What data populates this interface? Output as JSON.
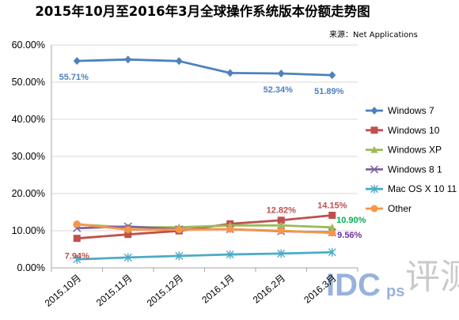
{
  "page": {
    "title": "2015年10月至2016年3月全球操作系统版本份额走势图",
    "source": "来源：Net Applications",
    "watermark_main": "IDC",
    "watermark_sub": "ps",
    "watermark_cn": "评测"
  },
  "chart_data": {
    "type": "line",
    "title": "2015年10月至2016年3月全球操作系统版本份额走势图",
    "xlabel": "",
    "ylabel": "",
    "categories": [
      "2015.10月",
      "2015.11月",
      "2015.12月",
      "2016.1月",
      "2016.2月",
      "2016.3月"
    ],
    "y_ticks": [
      "0.00%",
      "10.00%",
      "20.00%",
      "30.00%",
      "40.00%",
      "50.00%",
      "60.00%"
    ],
    "ylim": [
      0,
      60
    ],
    "grid": true,
    "legend_position": "right",
    "series": [
      {
        "name": "Windows 7",
        "color": "#4f81bd",
        "marker": "diamond",
        "values": [
          55.71,
          56.1,
          55.68,
          52.47,
          52.34,
          51.89
        ]
      },
      {
        "name": "Windows 10",
        "color": "#c0504d",
        "marker": "square",
        "values": [
          7.94,
          9.0,
          9.96,
          11.85,
          12.82,
          14.15
        ]
      },
      {
        "name": "Windows XP",
        "color": "#9bbb59",
        "marker": "triangle",
        "values": [
          11.68,
          10.93,
          10.93,
          11.42,
          11.42,
          10.9
        ]
      },
      {
        "name": "Windows 8 1",
        "color": "#8064a2",
        "marker": "x",
        "values": [
          10.68,
          11.15,
          10.4,
          10.4,
          9.86,
          9.56
        ]
      },
      {
        "name": "Mac OS X 10 11",
        "color": "#4bacc6",
        "marker": "asterisk",
        "values": [
          2.3,
          2.79,
          3.21,
          3.6,
          3.85,
          4.2
        ]
      },
      {
        "name": "Other",
        "color": "#f79646",
        "marker": "circle",
        "values": [
          11.8,
          10.3,
          10.3,
          10.4,
          10.0,
          9.4
        ]
      }
    ],
    "data_labels": [
      {
        "series": "Windows 7",
        "index": 0,
        "text": "55.71%",
        "color": "#4f81bd"
      },
      {
        "series": "Windows 7",
        "index": 4,
        "text": "52.34%",
        "color": "#4f81bd"
      },
      {
        "series": "Windows 7",
        "index": 5,
        "text": "51.89%",
        "color": "#4f81bd"
      },
      {
        "series": "Windows 10",
        "index": 0,
        "text": "7.94%",
        "color": "#c0504d"
      },
      {
        "series": "Windows 10",
        "index": 4,
        "text": "12.82%",
        "color": "#c0504d"
      },
      {
        "series": "Windows 10",
        "index": 5,
        "text": "14.15%",
        "color": "#c0504d"
      },
      {
        "series": "Windows XP",
        "index": 5,
        "text": "10.90%",
        "color": "#00b050"
      },
      {
        "series": "Windows 8 1",
        "index": 5,
        "text": "9.56%",
        "color": "#7030a0"
      }
    ]
  }
}
